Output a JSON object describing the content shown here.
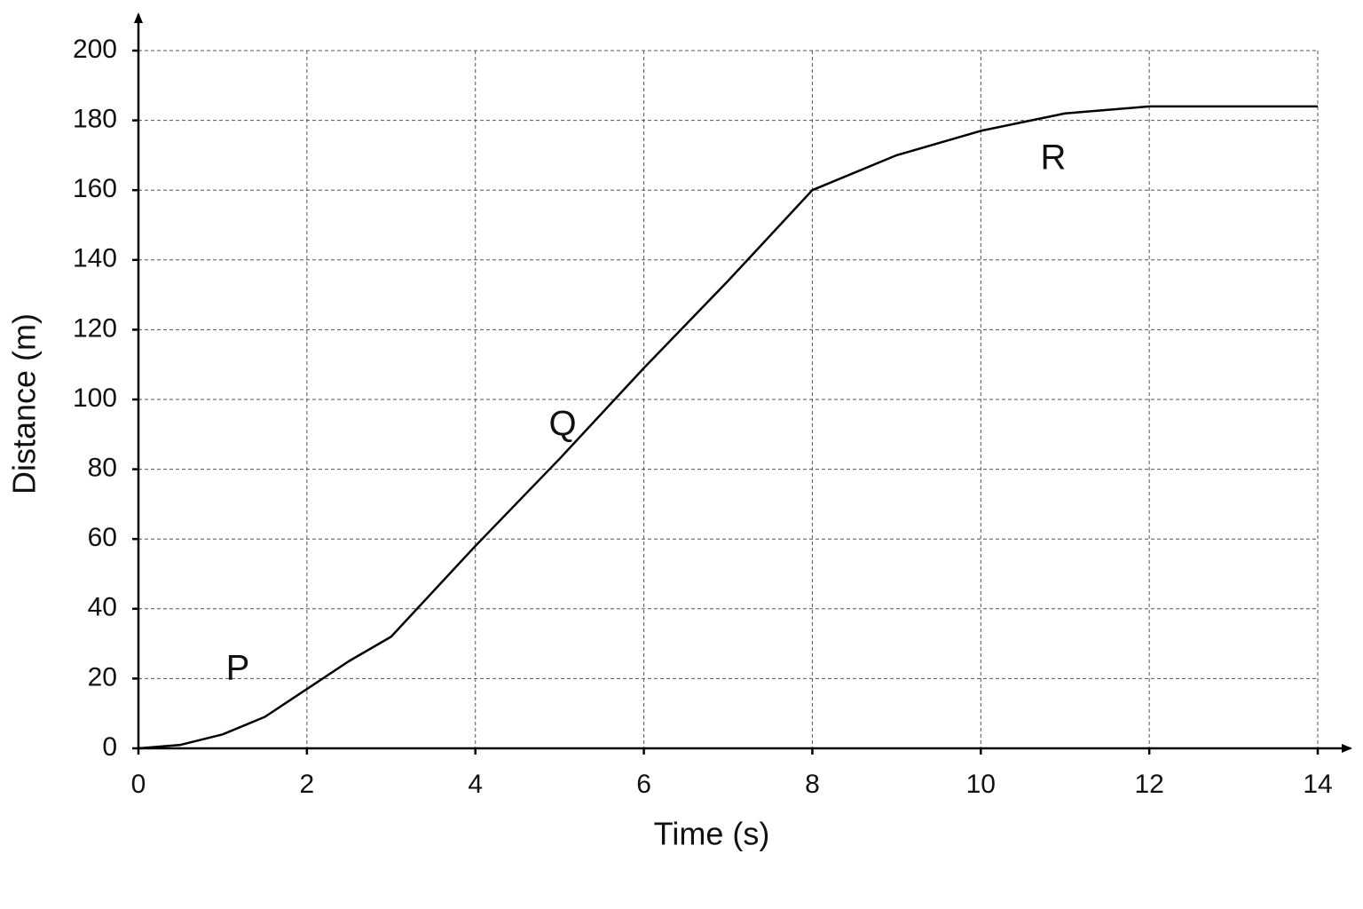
{
  "chart_data": {
    "type": "line",
    "x_label": "Time (s)",
    "y_label": "Distance (m)",
    "x": [
      0,
      0.5,
      1,
      1.5,
      2,
      2.5,
      3,
      4,
      5,
      6,
      7,
      8,
      9,
      10,
      11,
      12,
      13,
      14
    ],
    "series": [
      {
        "color": "#000000",
        "values": [
          0,
          1,
          4,
          9,
          17,
          25,
          32,
          58,
          83,
          109,
          134,
          160,
          170,
          177,
          182,
          184,
          184,
          184
        ]
      }
    ],
    "xlim": [
      0,
      14
    ],
    "xticks": [
      0,
      2,
      4,
      6,
      8,
      10,
      12,
      14
    ],
    "ylim": [
      0,
      200
    ],
    "yticks": [
      0,
      20,
      40,
      60,
      80,
      100,
      120,
      140,
      160,
      180,
      200
    ],
    "grid": true,
    "annotations": [
      "P",
      "Q",
      "R"
    ]
  }
}
